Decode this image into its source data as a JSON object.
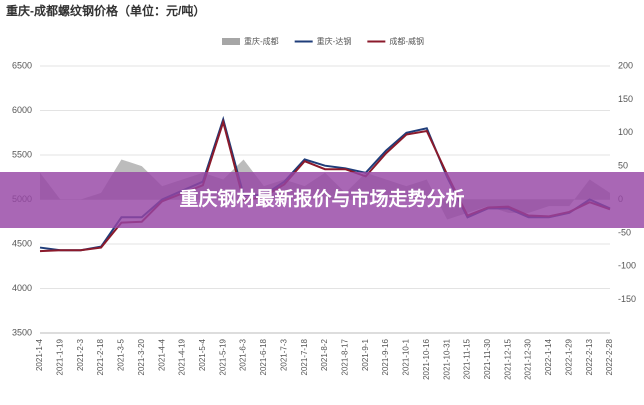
{
  "chart_data": {
    "type": "line",
    "title": "重庆-成都螺纹钢价格（单位：元/吨）",
    "banner": "重庆钢材最新报价与市场走势分析",
    "categories": [
      "2021-1-4",
      "2021-1-19",
      "2021-2-3",
      "2021-2-18",
      "2021-3-5",
      "2021-3-20",
      "2021-4-4",
      "2021-4-19",
      "2021-5-4",
      "2021-5-19",
      "2021-6-3",
      "2021-6-18",
      "2021-7-3",
      "2021-7-18",
      "2021-8-2",
      "2021-8-17",
      "2021-9-1",
      "2021-9-16",
      "2021-10-1",
      "2021-10-16",
      "2021-10-31",
      "2021-11-15",
      "2021-11-30",
      "2021-12-15",
      "2021-12-30",
      "2022-1-14",
      "2022-1-29",
      "2022-2-13",
      "2022-2-28"
    ],
    "series": [
      {
        "name": "重庆-成都",
        "type": "area",
        "axis": "y2",
        "color": "#a6a6a6",
        "values": [
          40,
          0,
          0,
          10,
          60,
          50,
          20,
          30,
          40,
          30,
          60,
          20,
          30,
          20,
          40,
          10,
          40,
          30,
          20,
          30,
          -30,
          -20,
          -10,
          -20,
          -20,
          -10,
          -10,
          30,
          10
        ]
      },
      {
        "name": "重庆-达钢",
        "type": "line",
        "color": "#1f3d7a",
        "values": [
          4460,
          4430,
          4430,
          4470,
          4800,
          4800,
          5000,
          5100,
          5200,
          5900,
          5050,
          5050,
          5200,
          5450,
          5380,
          5350,
          5300,
          5550,
          5750,
          5800,
          5250,
          4800,
          4900,
          4900,
          4800,
          4800,
          4850,
          5000,
          4900
        ]
      },
      {
        "name": "成都-威钢",
        "type": "line",
        "color": "#8b1a2b",
        "values": [
          4420,
          4430,
          4430,
          4460,
          4740,
          4750,
          4980,
          5070,
          5160,
          5870,
          4990,
          5030,
          5170,
          5430,
          5340,
          5340,
          5260,
          5520,
          5730,
          5770,
          5280,
          4820,
          4910,
          4920,
          4820,
          4810,
          4860,
          4970,
          4890
        ]
      }
    ],
    "ylim": [
      3500,
      6500
    ],
    "yticks": [
      3500,
      4000,
      4500,
      5000,
      5500,
      6000,
      6500
    ],
    "y2lim": [
      -200,
      200
    ],
    "y2ticks": [
      -150,
      -100,
      -50,
      0,
      50,
      100,
      150,
      200
    ],
    "grid": true
  }
}
